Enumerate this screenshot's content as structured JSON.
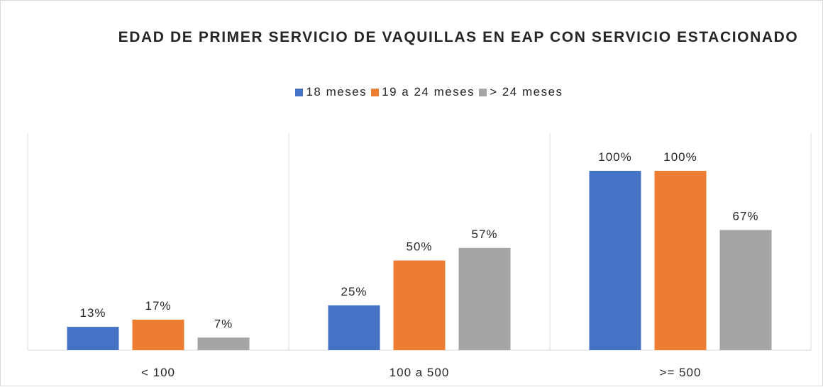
{
  "chart_data": {
    "type": "bar",
    "title": "EDAD DE PRIMER SERVICIO DE VAQUILLAS EN EAP CON SERVICIO ESTACIONADO",
    "categories": [
      "< 100",
      "100 a 500",
      ">= 500"
    ],
    "series": [
      {
        "name": "18 meses",
        "color": "#4472c4",
        "values": [
          13,
          25,
          100
        ],
        "value_labels": [
          "13%",
          "25%",
          "100%"
        ]
      },
      {
        "name": "19 a 24 meses",
        "color": "#ed7d31",
        "values": [
          17,
          50,
          100
        ],
        "value_labels": [
          "17%",
          "50%",
          "100%"
        ]
      },
      {
        "name": "> 24 meses",
        "color": "#a5a5a5",
        "values": [
          7,
          57,
          67
        ],
        "value_labels": [
          "7%",
          "57%",
          "67%"
        ]
      }
    ],
    "ylim": [
      0,
      100
    ],
    "legend": "top"
  }
}
